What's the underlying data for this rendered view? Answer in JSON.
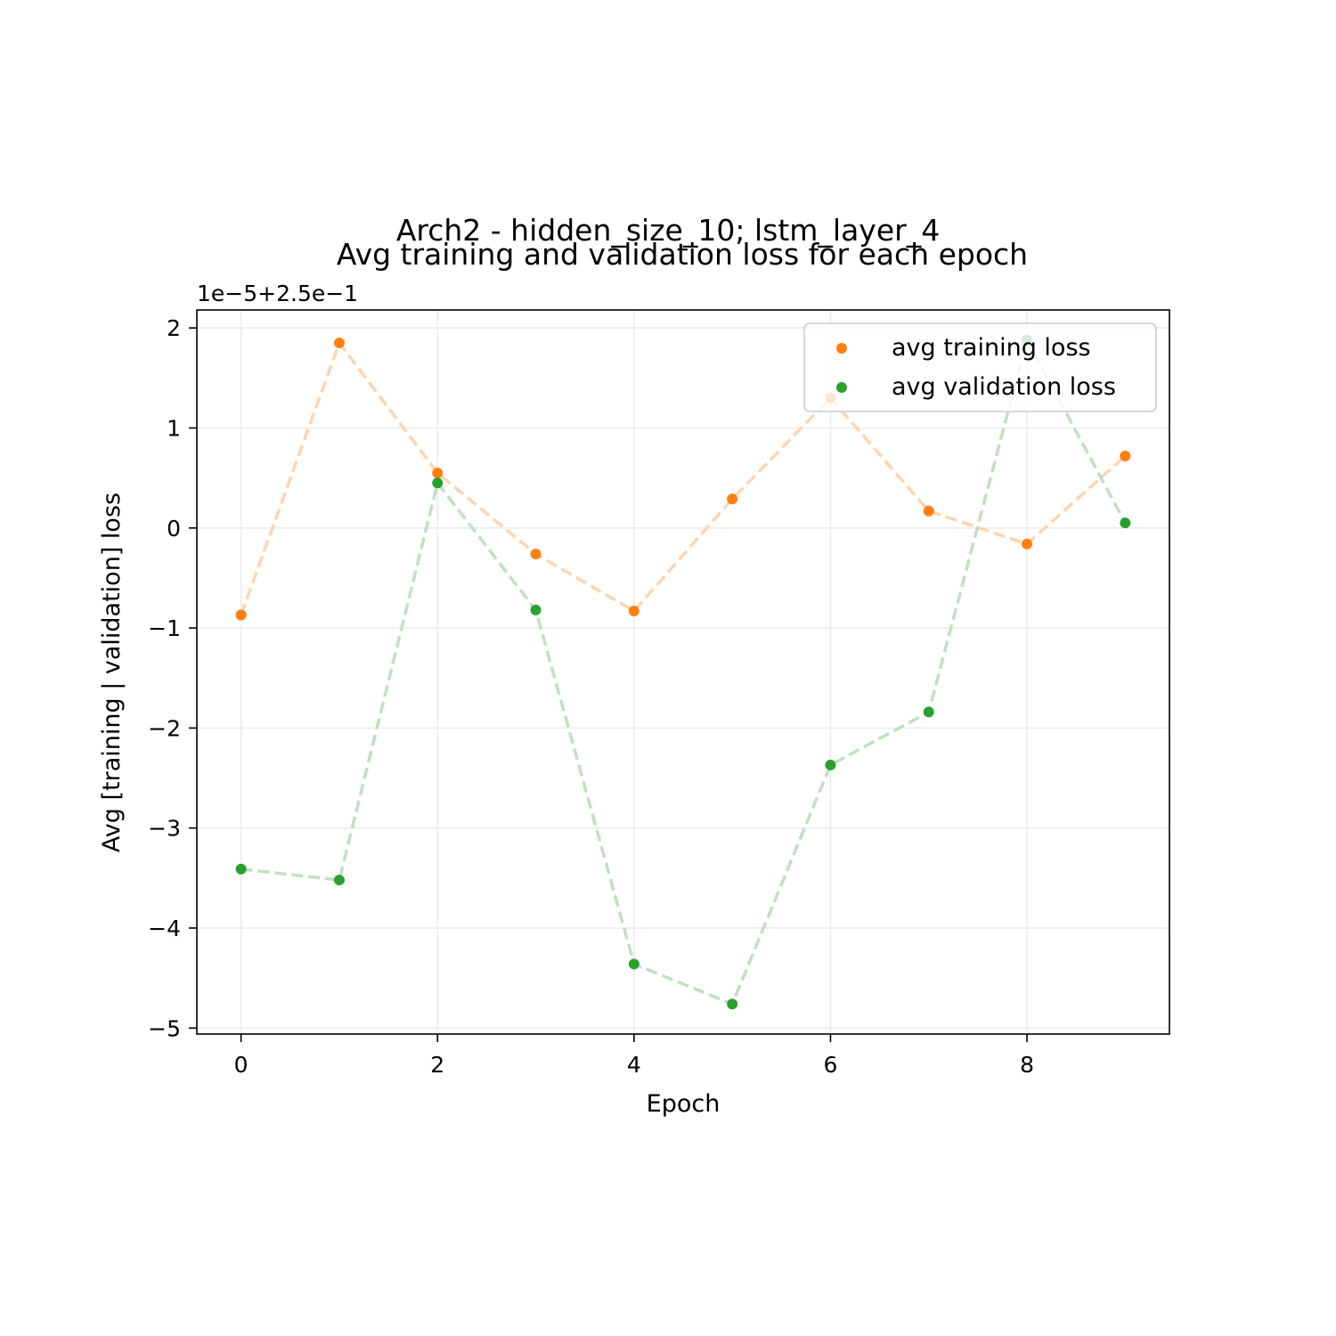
{
  "chart_data": {
    "type": "line",
    "title_line1": "Arch2 - hidden_size_10; lstm_layer_4",
    "title_line2": "Avg training and validation loss for each epoch",
    "xlabel": "Epoch",
    "ylabel": "Avg [training | validation] loss",
    "y_offset_text": "1e−5+2.5e−1",
    "xlim": [
      -0.45,
      9.45
    ],
    "ylim": [
      -5.06,
      2.18
    ],
    "x_ticks": [
      0,
      2,
      4,
      6,
      8
    ],
    "y_ticks": [
      2,
      1,
      0,
      -1,
      -2,
      -3,
      -4,
      -5
    ],
    "x_tick_labels": [
      "0",
      "2",
      "4",
      "6",
      "8"
    ],
    "y_tick_labels": [
      "2",
      "1",
      "0",
      "−1",
      "−2",
      "−3",
      "−4",
      "−5"
    ],
    "grid": true,
    "legend_position": "top-right",
    "x": [
      0,
      1,
      2,
      3,
      4,
      5,
      6,
      7,
      8,
      9
    ],
    "series": [
      {
        "name": "avg training loss",
        "color": "#ff7f0e",
        "line_color": "#ffd4b0",
        "values": [
          -0.87,
          1.85,
          0.55,
          -0.26,
          -0.83,
          0.29,
          1.3,
          0.17,
          -0.16,
          0.72
        ]
      },
      {
        "name": "avg validation loss",
        "color": "#2ca02c",
        "line_color": "#bfe1bf",
        "values": [
          -3.41,
          -3.52,
          0.45,
          -0.82,
          -4.36,
          -4.76,
          -2.37,
          -1.84,
          1.88,
          0.05
        ]
      }
    ]
  }
}
